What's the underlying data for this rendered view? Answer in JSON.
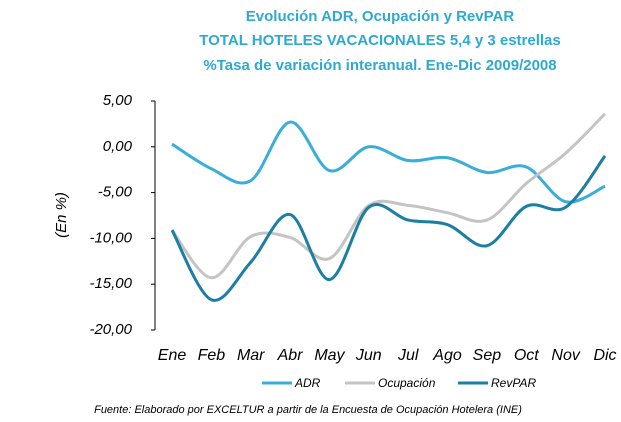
{
  "chart_data": {
    "type": "line",
    "title": [
      "Evolución ADR, Ocupación y RevPAR",
      "TOTAL HOTELES VACACIONALES 5,4 y 3 estrellas",
      "%Tasa de variación interanual. Ene-Dic 2009/2008"
    ],
    "ylabel": "(En %)",
    "source": "Fuente: Elaborado por EXCELTUR a partir de la Encuesta de Ocupación Hotelera (INE)",
    "categories": [
      "Ene",
      "Feb",
      "Mar",
      "Abr",
      "May",
      "Jun",
      "Jul",
      "Ago",
      "Sep",
      "Oct",
      "Nov",
      "Dic"
    ],
    "series": [
      {
        "name": "ADR",
        "color": "#3aaed8",
        "values": [
          0.3,
          -2.4,
          -3.7,
          2.7,
          -2.6,
          0.0,
          -1.5,
          -1.2,
          -2.8,
          -2.2,
          -6.0,
          -4.3
        ]
      },
      {
        "name": "Ocupación",
        "color": "#c4c4c4",
        "values": [
          -9.1,
          -14.3,
          -9.8,
          -9.9,
          -12.2,
          -6.4,
          -6.4,
          -7.2,
          -8.0,
          -4.0,
          -0.7,
          3.6
        ]
      },
      {
        "name": "RevPAR",
        "color": "#1a7fa3",
        "values": [
          -9.1,
          -16.7,
          -12.6,
          -7.4,
          -14.5,
          -6.6,
          -8.0,
          -8.5,
          -10.8,
          -6.5,
          -6.6,
          -1.0
        ]
      }
    ],
    "ylim": [
      -20,
      5
    ],
    "yticks": [
      {
        "value": 5,
        "label": "5,00"
      },
      {
        "value": 0,
        "label": "0,00"
      },
      {
        "value": -5,
        "label": "-5,00"
      },
      {
        "value": -10,
        "label": "-10,00"
      },
      {
        "value": -15,
        "label": "-15,00"
      },
      {
        "value": -20,
        "label": "-20,00"
      }
    ],
    "legend": "bottom"
  }
}
